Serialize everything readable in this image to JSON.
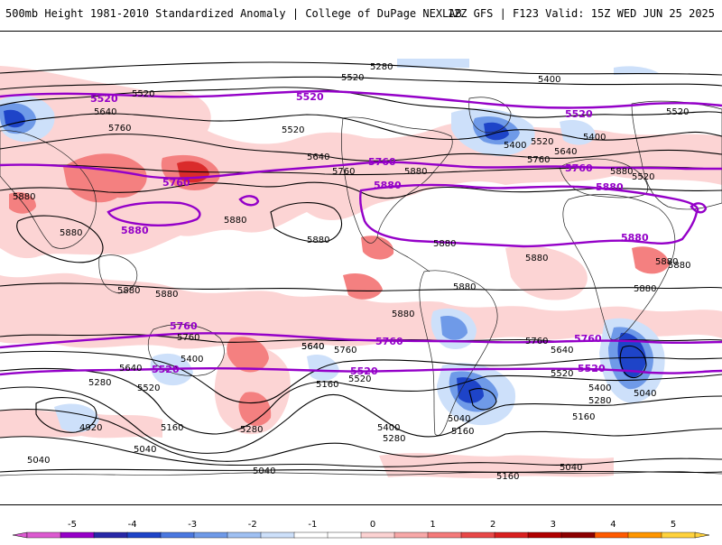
{
  "header": {
    "title_left": "500mb Height 1981-2010 Standardized Anomaly | College of DuPage NEXLAB",
    "title_right": "12Z GFS | F123 Valid: 15Z WED JUN 25 2025"
  },
  "colors": {
    "anom_pos1": "#fcd2d2",
    "anom_pos2": "#f47a7a",
    "anom_pos3": "#d92020",
    "anom_neg1": "#cde0fa",
    "anom_neg2": "#6f9ae8",
    "anom_neg3": "#1e44c8",
    "contour_black": "#000000",
    "contour_purple": "#9400c8"
  },
  "contour_labels": [
    {
      "text": "5280"
    },
    {
      "text": "5520"
    },
    {
      "text": "5400"
    },
    {
      "text": "5520"
    },
    {
      "text": "5640"
    },
    {
      "text": "5520"
    },
    {
      "text": "5760"
    },
    {
      "text": "5640"
    },
    {
      "text": "5760"
    },
    {
      "text": "5880"
    },
    {
      "text": "5880"
    },
    {
      "text": "5880"
    },
    {
      "text": "5880"
    },
    {
      "text": "5880"
    },
    {
      "text": "5880"
    },
    {
      "text": "5880"
    },
    {
      "text": "5880"
    },
    {
      "text": "5400"
    },
    {
      "text": "5520"
    },
    {
      "text": "5640"
    },
    {
      "text": "5400"
    },
    {
      "text": "5520"
    },
    {
      "text": "5760"
    },
    {
      "text": "5880"
    },
    {
      "text": "5520"
    },
    {
      "text": "5880"
    },
    {
      "text": "5880"
    },
    {
      "text": "5880"
    },
    {
      "text": "5880"
    },
    {
      "text": "5880"
    },
    {
      "text": "5880"
    },
    {
      "text": "5760"
    },
    {
      "text": "5640"
    },
    {
      "text": "5400"
    },
    {
      "text": "5640"
    },
    {
      "text": "5520"
    },
    {
      "text": "5280"
    },
    {
      "text": "4920"
    },
    {
      "text": "5160"
    },
    {
      "text": "5040"
    },
    {
      "text": "5040"
    },
    {
      "text": "5280"
    },
    {
      "text": "5640"
    },
    {
      "text": "5760"
    },
    {
      "text": "5160"
    },
    {
      "text": "5520"
    },
    {
      "text": "5400"
    },
    {
      "text": "5280"
    },
    {
      "text": "5040"
    },
    {
      "text": "5160"
    },
    {
      "text": "5040"
    },
    {
      "text": "5160"
    },
    {
      "text": "5760"
    },
    {
      "text": "5640"
    },
    {
      "text": "5520"
    },
    {
      "text": "5400"
    },
    {
      "text": "5280"
    },
    {
      "text": "5040"
    },
    {
      "text": "5160"
    },
    {
      "text": "5040"
    }
  ],
  "purple_labels": [
    {
      "text": "5520"
    },
    {
      "text": "5520"
    },
    {
      "text": "5520"
    },
    {
      "text": "5760"
    },
    {
      "text": "5760"
    },
    {
      "text": "5760"
    },
    {
      "text": "5880"
    },
    {
      "text": "5880"
    },
    {
      "text": "5880"
    },
    {
      "text": "5880"
    },
    {
      "text": "5760"
    },
    {
      "text": "5760"
    },
    {
      "text": "5760"
    },
    {
      "text": "5520"
    },
    {
      "text": "5520"
    },
    {
      "text": "5520"
    }
  ],
  "scale": {
    "ticks": [
      "-5",
      "-4",
      "-3",
      "-2",
      "-1",
      "0",
      "1",
      "2",
      "3",
      "4",
      "5"
    ],
    "colors": [
      "#dc5ad0",
      "#9600c8",
      "#2828a8",
      "#1e44c8",
      "#4a78e0",
      "#6f9ae8",
      "#9fc0f2",
      "#cde0fa",
      "#ffffff",
      "#ffffff",
      "#fcd2d2",
      "#f8a8a8",
      "#f47a7a",
      "#e84848",
      "#d92020",
      "#b00000",
      "#8c0000",
      "#ff5a00",
      "#ff9600",
      "#ffd23c"
    ]
  }
}
